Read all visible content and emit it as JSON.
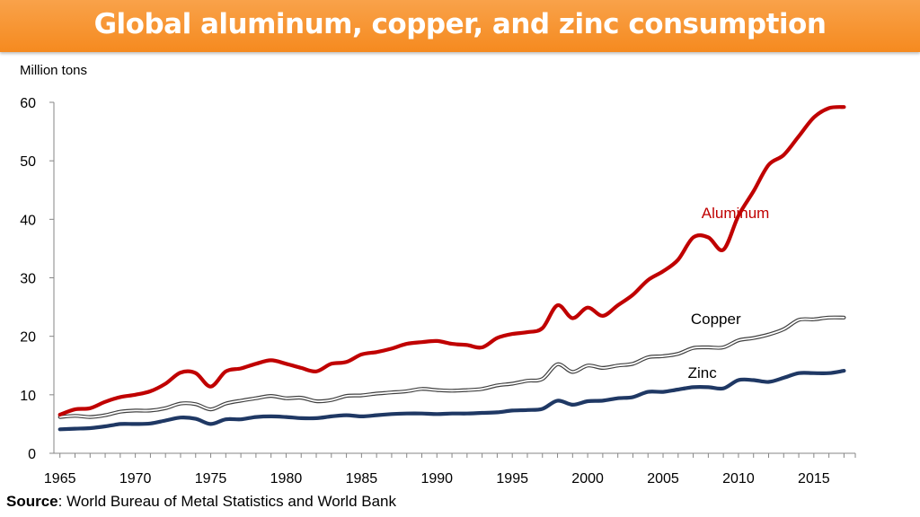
{
  "header": {
    "title": "Global aluminum, copper, and zinc consumption"
  },
  "footer": {
    "source_label": "Source",
    "source_text": ": World Bureau of Metal Statistics and World Bank"
  },
  "chart_data": {
    "type": "line",
    "title": "Global aluminum, copper, and zinc consumption",
    "ylabel": "Million tons",
    "xlabel": "",
    "xlim": [
      1965,
      2017
    ],
    "ylim": [
      0,
      60
    ],
    "yticks": [
      0,
      10,
      20,
      30,
      40,
      50,
      60
    ],
    "xticks": [
      1965,
      1970,
      1975,
      1980,
      1985,
      1990,
      1995,
      2000,
      2005,
      2010,
      2015
    ],
    "x": [
      1965,
      1966,
      1967,
      1968,
      1969,
      1970,
      1971,
      1972,
      1973,
      1974,
      1975,
      1976,
      1977,
      1978,
      1979,
      1980,
      1981,
      1982,
      1983,
      1984,
      1985,
      1986,
      1987,
      1988,
      1989,
      1990,
      1991,
      1992,
      1993,
      1994,
      1995,
      1996,
      1997,
      1998,
      1999,
      2000,
      2001,
      2002,
      2003,
      2004,
      2005,
      2006,
      2007,
      2008,
      2009,
      2010,
      2011,
      2012,
      2013,
      2014,
      2015,
      2016,
      2017
    ],
    "series": [
      {
        "name": "Aluminum",
        "color": "#c00000",
        "values": [
          6.6,
          7.5,
          7.7,
          8.8,
          9.6,
          10.0,
          10.6,
          11.9,
          13.8,
          13.7,
          11.4,
          14.0,
          14.5,
          15.3,
          15.9,
          15.3,
          14.6,
          14.0,
          15.3,
          15.6,
          16.9,
          17.3,
          17.9,
          18.7,
          19.0,
          19.2,
          18.7,
          18.5,
          18.1,
          19.7,
          20.4,
          20.7,
          21.4,
          25.3,
          23.1,
          24.9,
          23.5,
          25.3,
          27.1,
          29.6,
          31.1,
          33.1,
          36.9,
          36.9,
          34.8,
          40.6,
          44.8,
          49.3,
          51.0,
          54.2,
          57.4,
          59.0,
          59.2
        ]
      },
      {
        "name": "Copper",
        "color": "#404040",
        "values": [
          6.2,
          6.4,
          6.2,
          6.5,
          7.1,
          7.3,
          7.3,
          7.7,
          8.5,
          8.4,
          7.5,
          8.5,
          9.0,
          9.4,
          9.8,
          9.4,
          9.5,
          8.9,
          9.1,
          9.8,
          9.9,
          10.2,
          10.4,
          10.6,
          11.0,
          10.8,
          10.7,
          10.8,
          11.0,
          11.6,
          11.9,
          12.4,
          12.7,
          15.2,
          13.9,
          15.0,
          14.6,
          15.0,
          15.3,
          16.4,
          16.6,
          17.0,
          18.0,
          18.1,
          18.1,
          19.3,
          19.7,
          20.3,
          21.2,
          22.8,
          22.9,
          23.2,
          23.2
        ]
      },
      {
        "name": "Zinc",
        "color": "#1f3864",
        "values": [
          4.1,
          4.2,
          4.3,
          4.6,
          5.0,
          5.0,
          5.1,
          5.6,
          6.1,
          5.9,
          5.0,
          5.8,
          5.8,
          6.2,
          6.3,
          6.2,
          6.0,
          6.0,
          6.3,
          6.5,
          6.3,
          6.5,
          6.7,
          6.8,
          6.8,
          6.7,
          6.8,
          6.8,
          6.9,
          7.0,
          7.3,
          7.4,
          7.6,
          9.0,
          8.3,
          8.9,
          9.0,
          9.4,
          9.6,
          10.5,
          10.5,
          10.9,
          11.3,
          11.3,
          11.1,
          12.5,
          12.5,
          12.2,
          12.9,
          13.7,
          13.7,
          13.7,
          14.1
        ]
      }
    ],
    "annotations": [
      {
        "text": "Aluminum",
        "color": "#c00000"
      },
      {
        "text": "Copper",
        "color": "#000000"
      },
      {
        "text": "Zinc",
        "color": "#000000"
      }
    ],
    "grid": false,
    "legend": "none"
  }
}
